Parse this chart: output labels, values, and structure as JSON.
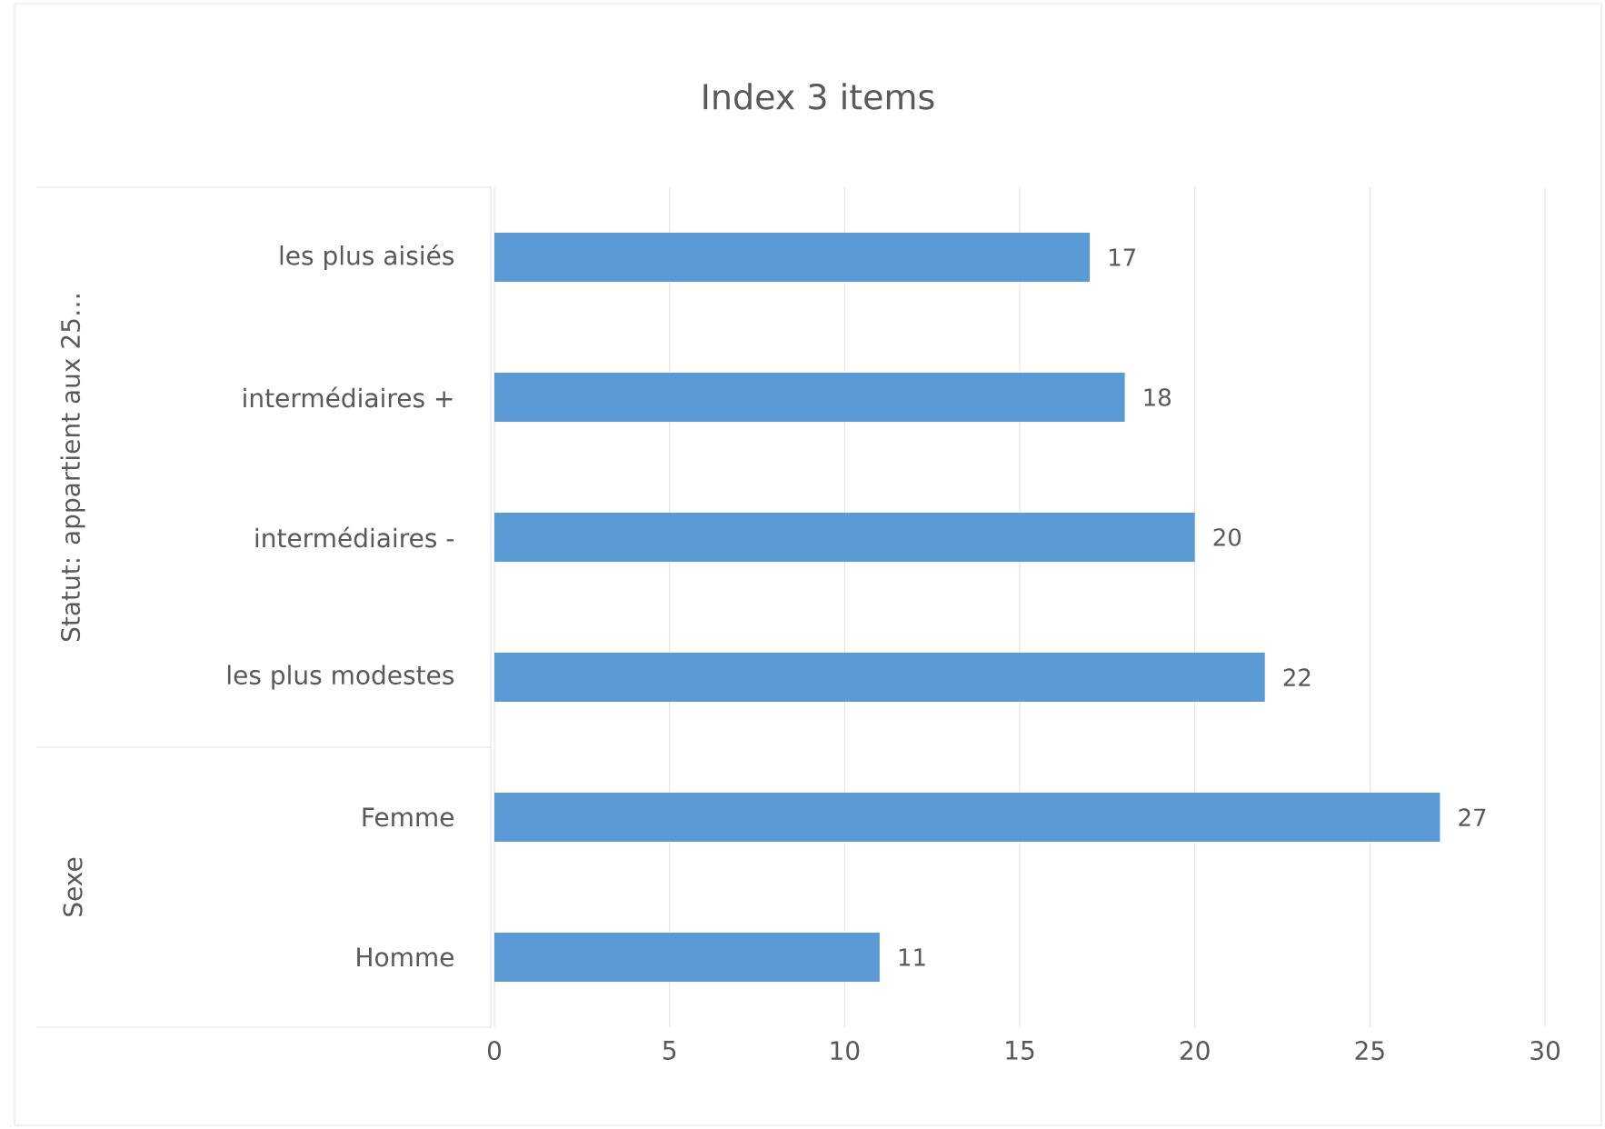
{
  "chart_data": {
    "type": "bar",
    "orientation": "horizontal",
    "title": "Index 3 items",
    "categories": [
      "les plus aisiés",
      "intermédiaires +",
      "intermédiaires -",
      "les plus modestes",
      "Femme",
      "Homme"
    ],
    "values": [
      17,
      18,
      20,
      22,
      27,
      11
    ],
    "color": "#5b9bd5",
    "xlim": [
      0,
      30
    ],
    "xticks": [
      0,
      5,
      10,
      15,
      20,
      25,
      30
    ],
    "grid": "x",
    "data_labels": true,
    "annotations": [
      "Statut: appartient aux 25…",
      "Sexe"
    ]
  }
}
